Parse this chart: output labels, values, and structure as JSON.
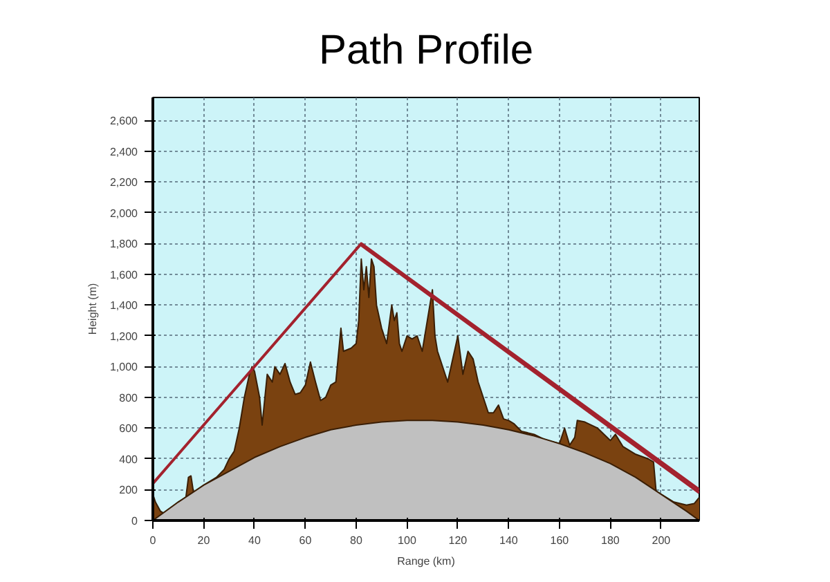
{
  "chart_data": {
    "type": "area",
    "title": "Path Profile",
    "xlabel": "Range (km)",
    "ylabel": "Height (m)",
    "xlim": [
      0,
      215
    ],
    "ylim": [
      0,
      2750
    ],
    "xticks": [
      0,
      20,
      40,
      60,
      80,
      100,
      120,
      140,
      160,
      180,
      200
    ],
    "yticks": [
      0,
      {
        "value": 200,
        "label": "200"
      },
      {
        "value": 400,
        "label": "400"
      },
      {
        "value": 600,
        "label": "600"
      },
      {
        "value": 800,
        "label": "800"
      },
      {
        "value": 1000,
        "label": "1,000"
      },
      {
        "value": 1200,
        "label": "1,200"
      },
      {
        "value": 1400,
        "label": "1,400"
      },
      {
        "value": 1600,
        "label": "1,600"
      },
      {
        "value": 1800,
        "label": "1,800"
      },
      {
        "value": 2000,
        "label": "2,000"
      },
      {
        "value": 2200,
        "label": "2,200"
      },
      {
        "value": 2400,
        "label": "2,400"
      },
      {
        "value": 2600,
        "label": "2,600"
      }
    ],
    "grid": true,
    "series": [
      {
        "color": "#7a4210",
        "x": [
          0,
          1,
          3,
          5,
          8,
          10,
          13,
          14,
          15,
          16,
          20,
          25,
          28,
          30,
          32,
          34,
          36,
          38,
          39,
          40,
          42,
          43,
          45,
          47,
          48,
          50,
          52,
          54,
          56,
          58,
          60,
          62,
          64,
          66,
          68,
          70,
          72,
          74,
          75,
          78,
          80,
          81,
          82,
          83,
          84,
          85,
          86,
          87,
          88,
          90,
          92,
          94,
          95,
          96,
          97,
          98,
          100,
          102,
          104,
          106,
          108,
          110,
          111,
          112,
          114,
          116,
          118,
          120,
          122,
          124,
          126,
          128,
          130,
          132,
          134,
          136,
          138,
          140,
          142,
          145,
          150,
          155,
          160,
          162,
          164,
          166,
          167,
          170,
          175,
          180,
          182,
          185,
          190,
          195,
          197,
          198,
          200,
          205,
          210,
          213,
          215
        ],
        "values": [
          170,
          120,
          60,
          40,
          90,
          120,
          150,
          280,
          290,
          180,
          230,
          280,
          330,
          400,
          450,
          600,
          800,
          950,
          1000,
          970,
          800,
          620,
          950,
          900,
          1000,
          950,
          1020,
          900,
          820,
          830,
          880,
          1030,
          900,
          780,
          800,
          880,
          900,
          1250,
          1100,
          1120,
          1150,
          1300,
          1700,
          1500,
          1650,
          1450,
          1700,
          1650,
          1400,
          1250,
          1150,
          1400,
          1300,
          1350,
          1150,
          1100,
          1200,
          1180,
          1200,
          1100,
          1300,
          1500,
          1200,
          1100,
          1000,
          900,
          1050,
          1200,
          950,
          1100,
          1050,
          900,
          800,
          700,
          700,
          750,
          660,
          650,
          630,
          580,
          560,
          520,
          500,
          600,
          490,
          540,
          650,
          640,
          600,
          520,
          560,
          480,
          430,
          400,
          380,
          190,
          170,
          120,
          100,
          110,
          150
        ]
      },
      {
        "color": "#c0c0c0",
        "x": [
          0,
          10,
          20,
          30,
          40,
          50,
          60,
          70,
          80,
          90,
          100,
          110,
          120,
          130,
          140,
          150,
          160,
          170,
          180,
          190,
          200,
          210,
          215
        ],
        "values": [
          0,
          120,
          230,
          320,
          410,
          480,
          540,
          590,
          620,
          640,
          650,
          650,
          640,
          620,
          590,
          550,
          500,
          440,
          370,
          280,
          170,
          60,
          0
        ]
      },
      {
        "type": "line",
        "color": "#a3222e",
        "x": [
          0,
          82,
          215
        ],
        "values": [
          240,
          1800,
          200
        ]
      },
      {
        "type": "line",
        "color": "#a3222e",
        "x": [
          82,
          215
        ],
        "values": [
          1790,
          180
        ]
      }
    ]
  }
}
